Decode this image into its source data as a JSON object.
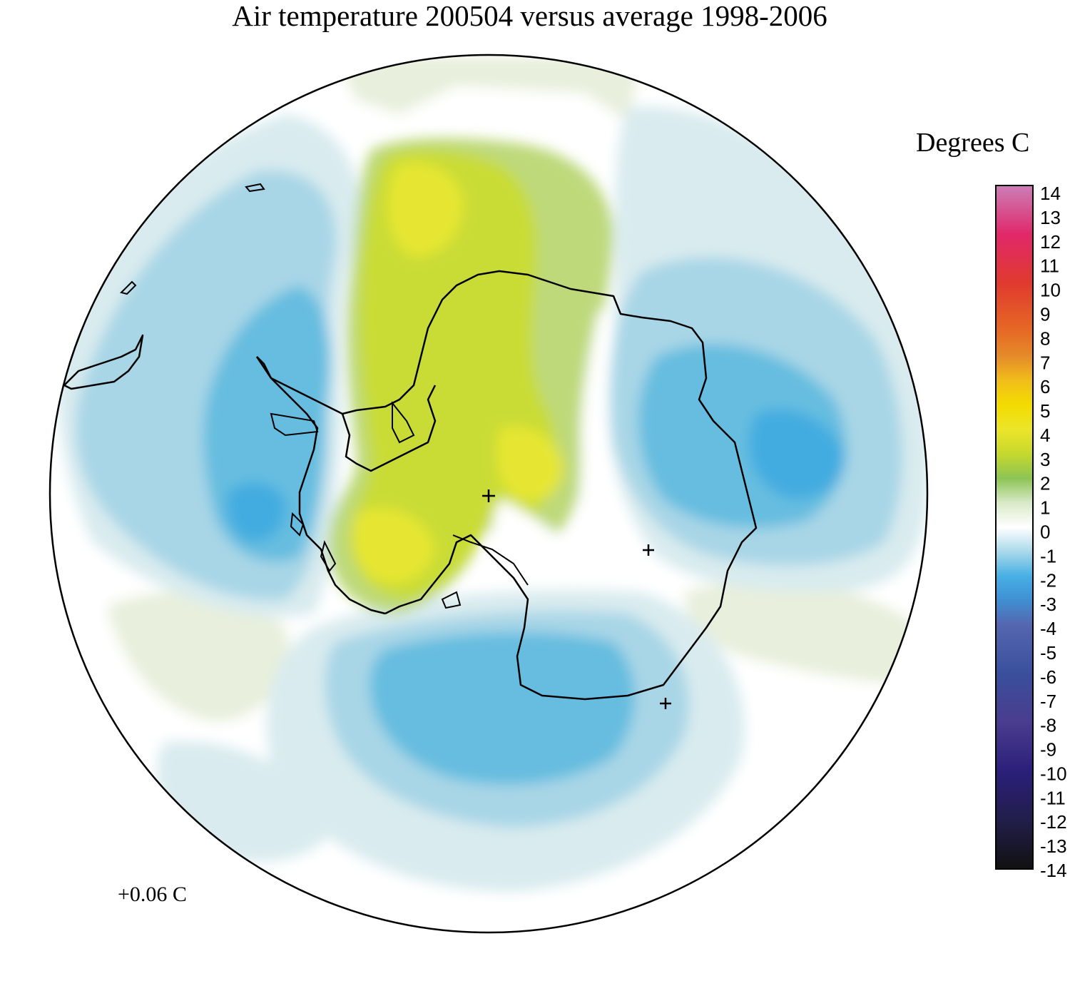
{
  "title": "Air temperature 200504 versus average 1998-2006",
  "unit_label": "Degrees C",
  "global_mean_label": "+0.06 C",
  "colorbar": {
    "min": -14,
    "max": 14,
    "ticks": [
      "14",
      "13",
      "12",
      "11",
      "10",
      "9",
      "8",
      "7",
      "6",
      "5",
      "4",
      "3",
      "2",
      "1",
      "0",
      "-1",
      "-2",
      "-3",
      "-4",
      "-5",
      "-6",
      "-7",
      "-8",
      "-9",
      "-10",
      "-11",
      "-12",
      "-13",
      "-14"
    ],
    "stops": [
      {
        "value": -14,
        "color": "#111111"
      },
      {
        "value": -12,
        "color": "#221e4a"
      },
      {
        "value": -10,
        "color": "#2b1f7a"
      },
      {
        "value": -8,
        "color": "#4a3c8e"
      },
      {
        "value": -6,
        "color": "#3a4f9c"
      },
      {
        "value": -4,
        "color": "#5566b0"
      },
      {
        "value": -3,
        "color": "#3f8fd2"
      },
      {
        "value": -2,
        "color": "#47b0e4"
      },
      {
        "value": -1,
        "color": "#a9d9ea"
      },
      {
        "value": 0,
        "color": "#ffffff"
      },
      {
        "value": 1,
        "color": "#d9eac8"
      },
      {
        "value": 2,
        "color": "#8cc454"
      },
      {
        "value": 3,
        "color": "#c6d82e"
      },
      {
        "value": 4,
        "color": "#ece52a"
      },
      {
        "value": 5,
        "color": "#f2dc00"
      },
      {
        "value": 6,
        "color": "#f1be1a"
      },
      {
        "value": 7,
        "color": "#e58b2a"
      },
      {
        "value": 8,
        "color": "#e66a25"
      },
      {
        "value": 10,
        "color": "#e03a2e"
      },
      {
        "value": 12,
        "color": "#e0286a"
      },
      {
        "value": 14,
        "color": "#cc7fb8"
      }
    ]
  },
  "colors": {
    "cold_light": "#d9ebef",
    "cold_mid": "#a8d6e6",
    "cold_strong": "#66bde0",
    "cold_core": "#42ace0",
    "warm_faint": "#e8efdc",
    "warm_light": "#bdd97a",
    "warm_mid": "#c9dc36",
    "warm_core": "#e6e633",
    "coastline": "#000000",
    "frame": "#000000"
  },
  "markers": "plus-sign"
}
